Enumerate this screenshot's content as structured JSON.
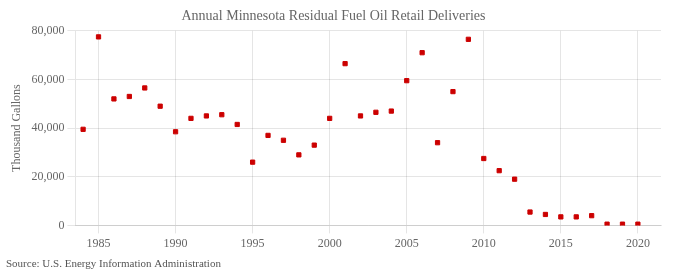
{
  "chart_data": {
    "type": "scatter",
    "title": "Annual Minnesota Residual Fuel Oil Retail Deliveries",
    "ylabel": "Thousand Gallons",
    "annotation": "Source: U.S. Energy Information Administration",
    "color": "#cc0000",
    "marker": "square",
    "grid": true,
    "xlim": [
      1983.5,
      2021.5
    ],
    "ylim": [
      0,
      80000
    ],
    "xticks": [
      1985,
      1990,
      1995,
      2000,
      2005,
      2010,
      2015,
      2020
    ],
    "yticks": [
      0,
      {
        "value": 20000,
        "label": "20,000"
      },
      {
        "value": 40000,
        "label": "40,000"
      },
      {
        "value": 60000,
        "label": "60,000"
      },
      {
        "value": 80000,
        "label": "80,000"
      }
    ],
    "x": [
      1984,
      1985,
      1986,
      1987,
      1988,
      1989,
      1990,
      1991,
      1992,
      1993,
      1994,
      1995,
      1996,
      1997,
      1998,
      1999,
      2000,
      2001,
      2002,
      2003,
      2004,
      2005,
      2006,
      2007,
      2008,
      2009,
      2010,
      2011,
      2012,
      2013,
      2014,
      2015,
      2016,
      2017,
      2018,
      2019,
      2020
    ],
    "values": [
      39500,
      77500,
      52000,
      53000,
      56500,
      49000,
      38500,
      44000,
      45000,
      45500,
      41500,
      26000,
      37000,
      35000,
      29000,
      33000,
      44000,
      66500,
      45000,
      46500,
      47000,
      59500,
      71000,
      34000,
      55000,
      76500,
      27500,
      22500,
      19000,
      5500,
      4500,
      3500,
      3500,
      4000,
      500,
      500,
      500
    ]
  }
}
